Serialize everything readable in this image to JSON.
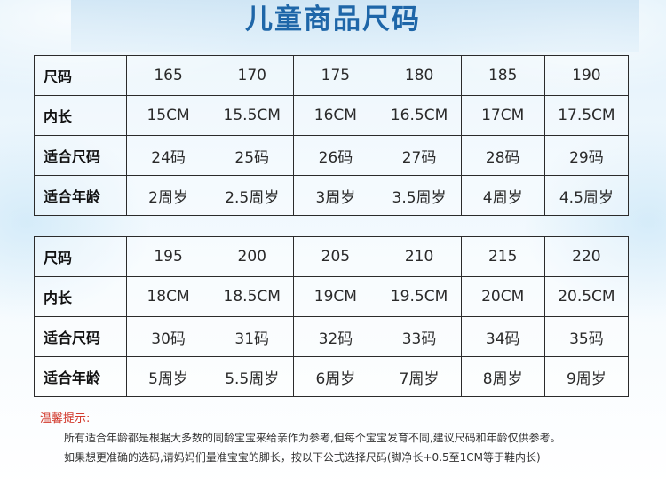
{
  "title": "儿童商品尺码",
  "tables": [
    {
      "rows": [
        {
          "label": "尺码",
          "cells": [
            "165",
            "170",
            "175",
            "180",
            "185",
            "190"
          ]
        },
        {
          "label": "内长",
          "cells": [
            "15CM",
            "15.5CM",
            "16CM",
            "16.5CM",
            "17CM",
            "17.5CM"
          ]
        },
        {
          "label": "适合尺码",
          "cells": [
            "24码",
            "25码",
            "26码",
            "27码",
            "28码",
            "29码"
          ]
        },
        {
          "label": "适合年龄",
          "cells": [
            "2周岁",
            "2.5周岁",
            "3周岁",
            "3.5周岁",
            "4周岁",
            "4.5周岁"
          ]
        }
      ]
    },
    {
      "rows": [
        {
          "label": "尺码",
          "cells": [
            "195",
            "200",
            "205",
            "210",
            "215",
            "220"
          ]
        },
        {
          "label": "内长",
          "cells": [
            "18CM",
            "18.5CM",
            "19CM",
            "19.5CM",
            "20CM",
            "20.5CM"
          ]
        },
        {
          "label": "适合尺码",
          "cells": [
            "30码",
            "31码",
            "32码",
            "33码",
            "34码",
            "35码"
          ]
        },
        {
          "label": "适合年龄",
          "cells": [
            "5周岁",
            "5.5周岁",
            "6周岁",
            "7周岁",
            "8周岁",
            "9周岁"
          ]
        }
      ]
    }
  ],
  "tips": {
    "heading": "温馨提示:",
    "lines": [
      "所有适合年龄都是根据大多数的同龄宝宝来给亲作为参考,但每个宝宝发育不同,建议尺码和年龄仅供参考。",
      "如果想更准确的选码,请妈妈们量准宝宝的脚长，按以下公式选择尺码(脚净长+0.5至1CM等于鞋内长)"
    ]
  },
  "colors": {
    "title": "#1e66a8",
    "tips_heading": "#d23b2e",
    "background_top": "#dff0fa",
    "border": "#2b2b2b"
  }
}
